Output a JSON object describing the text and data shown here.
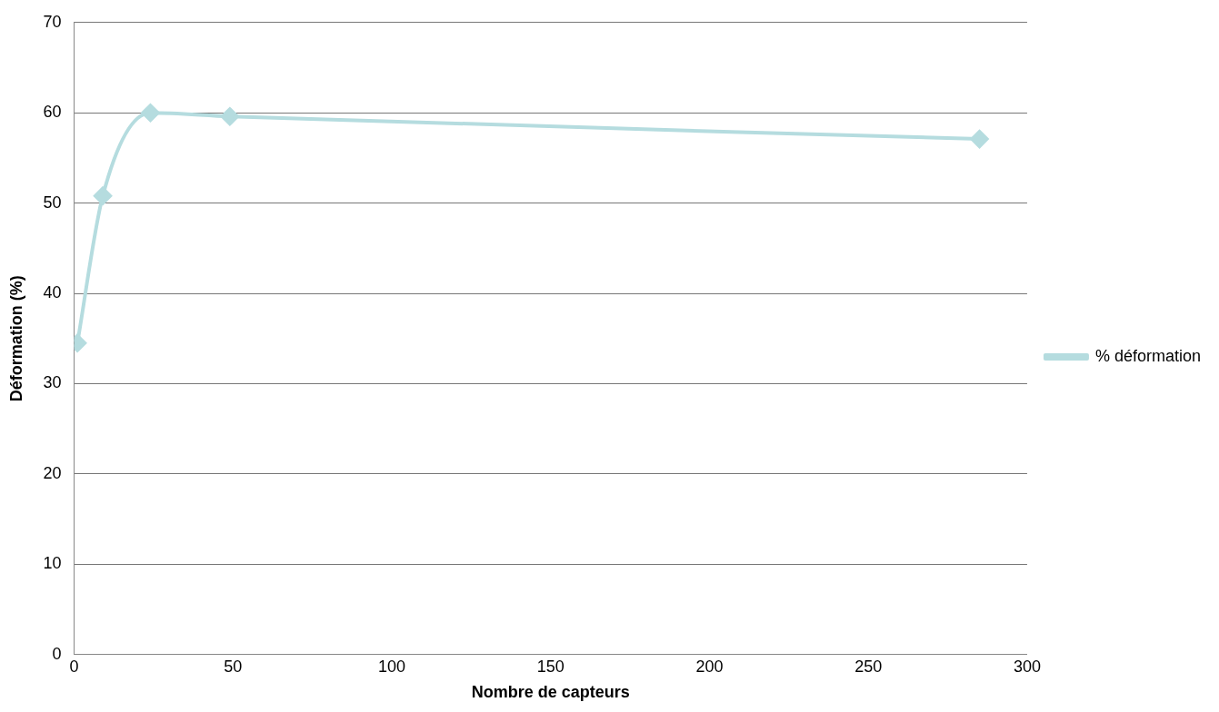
{
  "chart_data": {
    "type": "line",
    "xlabel": "Nombre de capteurs",
    "ylabel": "Déformation (%)",
    "x": [
      1,
      9,
      24,
      49,
      285
    ],
    "series": [
      {
        "name": "% déformation",
        "color": "#b5dcdf",
        "values": [
          34.5,
          50.8,
          60,
          59.6,
          57.1
        ]
      }
    ],
    "xlim": [
      0,
      300
    ],
    "xticks": [
      0,
      50,
      100,
      150,
      200,
      250,
      300
    ],
    "ylim": [
      0,
      70
    ],
    "yticks": [
      0,
      10,
      20,
      30,
      40,
      50,
      60,
      70
    ],
    "grid": "y",
    "legend": "right",
    "marker": "diamond",
    "line_style": "solid"
  }
}
